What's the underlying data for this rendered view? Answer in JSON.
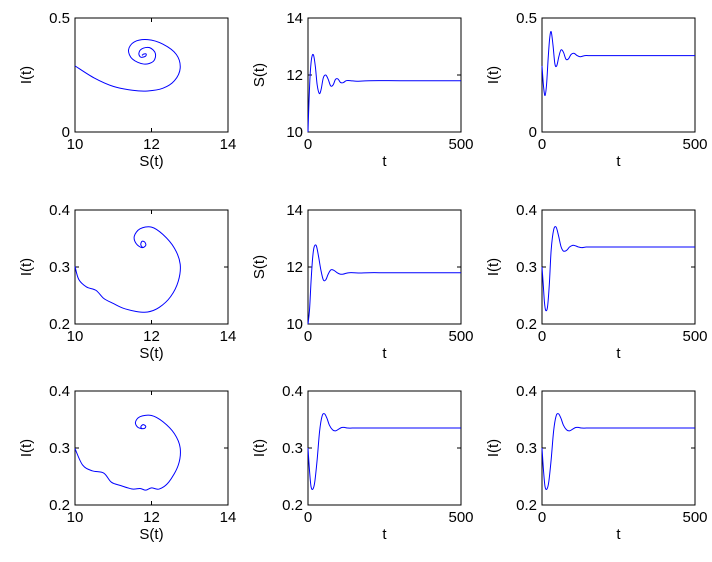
{
  "figure": {
    "line_color": "#0000ff",
    "axes_color": "#000000",
    "background": "#ffffff"
  },
  "chart_data": [
    {
      "id": "r1c1",
      "type": "line",
      "xlabel": "S(t)",
      "ylabel": "I(t)",
      "xlim": [
        10,
        14
      ],
      "ylim": [
        0,
        0.5
      ],
      "xticks": [
        "10",
        "12",
        "14"
      ],
      "yticks": [
        "0",
        "0.5"
      ],
      "grid": false,
      "series": [
        {
          "x": [
            10.0,
            10.5,
            11.0,
            11.5,
            11.9,
            12.3,
            12.6,
            12.75,
            12.65,
            12.3,
            11.9,
            11.55,
            11.4,
            11.5,
            11.8,
            12.05,
            12.1,
            11.95,
            11.75,
            11.67,
            11.72,
            11.84,
            11.86,
            11.8,
            11.75
          ],
          "y": [
            0.29,
            0.237,
            0.2,
            0.183,
            0.18,
            0.192,
            0.225,
            0.28,
            0.34,
            0.385,
            0.405,
            0.395,
            0.36,
            0.32,
            0.298,
            0.31,
            0.345,
            0.37,
            0.365,
            0.345,
            0.328,
            0.332,
            0.342,
            0.342,
            0.336
          ]
        }
      ]
    },
    {
      "id": "r1c2",
      "type": "line",
      "xlabel": "t",
      "ylabel": "S(t)",
      "xlim": [
        0,
        500
      ],
      "ylim": [
        10,
        14
      ],
      "xticks": [
        "0",
        "500"
      ],
      "yticks": [
        "10",
        "12",
        "14"
      ],
      "grid": false,
      "series": [
        {
          "x": [
            0,
            3,
            7,
            12,
            18,
            24,
            30,
            37,
            43,
            50,
            58,
            66,
            74,
            82,
            90,
            98,
            106,
            115,
            125,
            140,
            160,
            200,
            300,
            400,
            500
          ],
          "y": [
            10.0,
            11.0,
            12.0,
            12.6,
            12.7,
            12.3,
            11.65,
            11.35,
            11.5,
            11.9,
            12.0,
            11.85,
            11.62,
            11.65,
            11.85,
            11.86,
            11.74,
            11.73,
            11.8,
            11.8,
            11.78,
            11.8,
            11.8,
            11.8,
            11.8
          ]
        }
      ]
    },
    {
      "id": "r1c3",
      "type": "line",
      "xlabel": "t",
      "ylabel": "I(t)",
      "xlim": [
        0,
        500
      ],
      "ylim": [
        0,
        0.5
      ],
      "xticks": [
        "0",
        "500"
      ],
      "yticks": [
        "0",
        "0.5"
      ],
      "grid": false,
      "series": [
        {
          "x": [
            0,
            5,
            10,
            15,
            20,
            25,
            30,
            36,
            42,
            48,
            55,
            62,
            70,
            78,
            86,
            95,
            105,
            115,
            125,
            140,
            160,
            200,
            300,
            400,
            500
          ],
          "y": [
            0.29,
            0.2,
            0.16,
            0.21,
            0.32,
            0.41,
            0.44,
            0.38,
            0.3,
            0.29,
            0.33,
            0.36,
            0.35,
            0.32,
            0.32,
            0.34,
            0.345,
            0.335,
            0.33,
            0.335,
            0.335,
            0.335,
            0.335,
            0.335,
            0.335
          ]
        }
      ]
    },
    {
      "id": "r2c1",
      "type": "line",
      "xlabel": "S(t)",
      "ylabel": "I(t)",
      "xlim": [
        10,
        14
      ],
      "ylim": [
        0.2,
        0.4
      ],
      "xticks": [
        "10",
        "12",
        "14"
      ],
      "yticks": [
        "0.2",
        "0.3",
        "0.4"
      ],
      "grid": false,
      "series": [
        {
          "x": [
            10.0,
            10.1,
            10.3,
            10.55,
            10.75,
            11.0,
            11.25,
            11.6,
            11.9,
            12.2,
            12.5,
            12.7,
            12.75,
            12.6,
            12.3,
            12.0,
            11.7,
            11.55,
            11.6,
            11.75,
            11.85,
            11.82,
            11.75,
            11.72,
            11.77
          ],
          "y": [
            0.301,
            0.278,
            0.265,
            0.259,
            0.245,
            0.236,
            0.228,
            0.222,
            0.221,
            0.229,
            0.248,
            0.275,
            0.305,
            0.333,
            0.357,
            0.37,
            0.367,
            0.354,
            0.341,
            0.334,
            0.338,
            0.344,
            0.345,
            0.339,
            0.334
          ]
        }
      ]
    },
    {
      "id": "r2c2",
      "type": "line",
      "xlabel": "t",
      "ylabel": "S(t)",
      "xlim": [
        0,
        500
      ],
      "ylim": [
        10,
        14
      ],
      "xticks": [
        "0",
        "500"
      ],
      "yticks": [
        "10",
        "12",
        "14"
      ],
      "grid": false,
      "series": [
        {
          "x": [
            0,
            5,
            10,
            15,
            20,
            27,
            34,
            42,
            50,
            58,
            66,
            75,
            85,
            95,
            105,
            115,
            125,
            135,
            150,
            170,
            200,
            250,
            300,
            400,
            500
          ],
          "y": [
            10.0,
            10.5,
            11.5,
            12.3,
            12.7,
            12.75,
            12.4,
            11.9,
            11.55,
            11.55,
            11.75,
            11.9,
            11.88,
            11.8,
            11.75,
            11.75,
            11.78,
            11.8,
            11.8,
            11.79,
            11.8,
            11.8,
            11.8,
            11.8,
            11.8
          ]
        }
      ]
    },
    {
      "id": "r2c3",
      "type": "line",
      "xlabel": "t",
      "ylabel": "I(t)",
      "xlim": [
        0,
        500
      ],
      "ylim": [
        0.2,
        0.4
      ],
      "xticks": [
        "0",
        "500"
      ],
      "yticks": [
        "0.2",
        "0.3",
        "0.4"
      ],
      "grid": false,
      "series": [
        {
          "x": [
            0,
            4,
            8,
            12,
            18,
            24,
            30,
            38,
            46,
            54,
            62,
            70,
            80,
            90,
            100,
            110,
            120,
            130,
            145,
            165,
            200,
            250,
            300,
            400,
            500
          ],
          "y": [
            0.3,
            0.27,
            0.238,
            0.224,
            0.23,
            0.27,
            0.33,
            0.365,
            0.37,
            0.355,
            0.336,
            0.328,
            0.329,
            0.335,
            0.338,
            0.337,
            0.335,
            0.334,
            0.335,
            0.335,
            0.335,
            0.335,
            0.335,
            0.335,
            0.335
          ]
        }
      ]
    },
    {
      "id": "r3c1",
      "type": "line",
      "xlabel": "S(t)",
      "ylabel": "I(t)",
      "xlim": [
        10,
        14
      ],
      "ylim": [
        0.2,
        0.4
      ],
      "xticks": [
        "10",
        "12",
        "14"
      ],
      "yticks": [
        "0.2",
        "0.3",
        "0.4"
      ],
      "grid": false,
      "series": [
        {
          "x": [
            10.0,
            10.2,
            10.45,
            10.75,
            10.95,
            11.2,
            11.5,
            11.7,
            11.85,
            12.0,
            12.2,
            12.45,
            12.7,
            12.75,
            12.6,
            12.3,
            12.0,
            11.7,
            11.58,
            11.65,
            11.8,
            11.85,
            11.78,
            11.72,
            11.76
          ],
          "y": [
            0.299,
            0.27,
            0.26,
            0.256,
            0.24,
            0.234,
            0.228,
            0.229,
            0.226,
            0.23,
            0.228,
            0.24,
            0.27,
            0.3,
            0.325,
            0.346,
            0.357,
            0.355,
            0.345,
            0.336,
            0.334,
            0.338,
            0.341,
            0.337,
            0.333
          ]
        }
      ]
    },
    {
      "id": "r3c2",
      "type": "line",
      "xlabel": "t",
      "ylabel": "I(t)",
      "xlim": [
        0,
        500
      ],
      "ylim": [
        0.2,
        0.4
      ],
      "xticks": [
        "0",
        "500"
      ],
      "yticks": [
        "0.2",
        "0.3",
        "0.4"
      ],
      "grid": false,
      "series": [
        {
          "x": [
            0,
            5,
            10,
            16,
            22,
            30,
            38,
            46,
            54,
            62,
            70,
            80,
            90,
            100,
            110,
            120,
            130,
            145,
            165,
            200,
            250,
            300,
            350,
            400,
            500
          ],
          "y": [
            0.3,
            0.26,
            0.232,
            0.228,
            0.24,
            0.28,
            0.33,
            0.356,
            0.36,
            0.352,
            0.34,
            0.332,
            0.33,
            0.333,
            0.336,
            0.336,
            0.335,
            0.335,
            0.335,
            0.335,
            0.335,
            0.335,
            0.335,
            0.335,
            0.335
          ]
        }
      ]
    },
    {
      "id": "r3c3",
      "type": "line",
      "xlabel": "t",
      "ylabel": "I(t)",
      "xlim": [
        0,
        500
      ],
      "ylim": [
        0.2,
        0.4
      ],
      "xticks": [
        "0",
        "500"
      ],
      "yticks": [
        "0.2",
        "0.3",
        "0.4"
      ],
      "grid": false,
      "series": [
        {
          "x": [
            0,
            5,
            10,
            16,
            22,
            30,
            38,
            46,
            54,
            62,
            70,
            80,
            90,
            100,
            110,
            120,
            130,
            145,
            165,
            200,
            250,
            300,
            350,
            400,
            500
          ],
          "y": [
            0.3,
            0.26,
            0.232,
            0.228,
            0.24,
            0.28,
            0.33,
            0.356,
            0.36,
            0.352,
            0.34,
            0.332,
            0.33,
            0.333,
            0.336,
            0.336,
            0.335,
            0.335,
            0.335,
            0.335,
            0.335,
            0.335,
            0.335,
            0.335,
            0.335
          ]
        }
      ]
    }
  ]
}
